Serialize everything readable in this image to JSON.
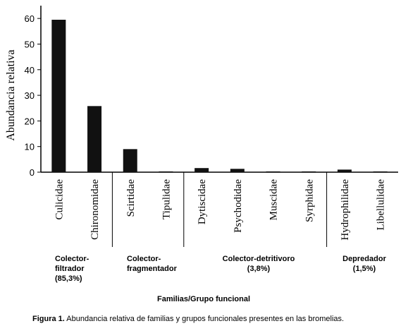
{
  "chart_data": {
    "type": "bar",
    "y_label": "Abundancia relativa",
    "x_label": "Familias/Grupo funcional",
    "categories": [
      "Culicidae",
      "Chironomidae",
      "Scirtidae",
      "Tipulidae",
      "Dytiscidae",
      "Psychodidae",
      "Muscidae",
      "Syrphidae",
      "Hydrophilidae",
      "Libellulidae"
    ],
    "values": [
      59.5,
      25.8,
      9,
      0.3,
      1.6,
      1.3,
      0.3,
      0.3,
      1.0,
      0.3
    ],
    "color": "#111111",
    "ylim": [
      0,
      65
    ],
    "yticks": [
      0,
      10,
      20,
      30,
      40,
      50,
      60
    ],
    "groups": [
      {
        "lines": [
          "Colector-",
          "filtrador",
          "(85,3%)"
        ]
      },
      {
        "lines": [
          "Colector-",
          "fragmentador"
        ]
      },
      {
        "lines": [
          "Colector-detritivoro",
          "(3,8%)"
        ]
      },
      {
        "lines": [
          "Depredador",
          "(1,5%)"
        ]
      }
    ],
    "caption": {
      "label": "Figura 1.",
      "text": " Abundancia relativa de familias y grupos funcionales presentes en las bromelias."
    }
  }
}
